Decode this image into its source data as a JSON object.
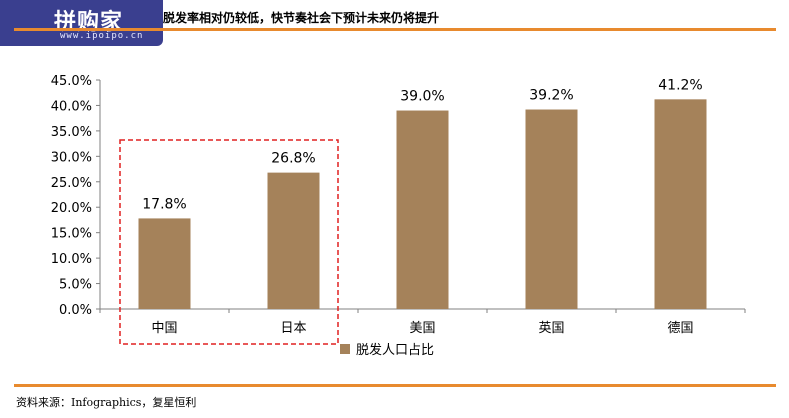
{
  "header": {
    "logo_text": "拼购家",
    "logo_url": "www.ipoipo.cn",
    "title": "脱发率相对仍较低，快节奏社会下预计未来仍将提升"
  },
  "footer": {
    "source": "资料来源：Infographics，复星恒利"
  },
  "colors": {
    "bar": "#a5825a",
    "rule": "#e88a2e",
    "highlight_box": "#e02020",
    "logo_bg": "#3a3f8f"
  },
  "chart_data": {
    "type": "bar",
    "categories": [
      "中国",
      "日本",
      "美国",
      "英国",
      "德国"
    ],
    "series": [
      {
        "name": "脱发人口占比",
        "values": [
          17.8,
          26.8,
          39.0,
          39.2,
          41.2
        ]
      }
    ],
    "data_labels": [
      "17.8%",
      "26.8%",
      "39.0%",
      "39.2%",
      "41.2%"
    ],
    "y_ticks": [
      "0.0%",
      "5.0%",
      "10.0%",
      "15.0%",
      "20.0%",
      "25.0%",
      "30.0%",
      "35.0%",
      "40.0%",
      "45.0%"
    ],
    "ylim": [
      0,
      45
    ],
    "grid": false,
    "legend_position": "bottom",
    "highlighted_categories": [
      "中国",
      "日本"
    ]
  }
}
